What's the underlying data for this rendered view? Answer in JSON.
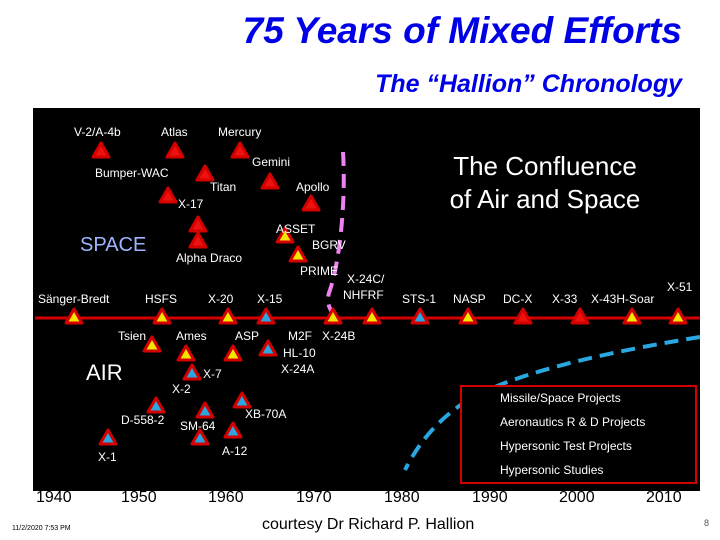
{
  "title": "75 Years of Mixed Efforts",
  "subtitle": "The “Hallion” Chronology",
  "labels": {
    "v2": "V-2/A-4b",
    "atlas": "Atlas",
    "mercury": "Mercury",
    "gemini": "Gemini",
    "bumper": "Bumper-WAC",
    "titan": "Titan",
    "apollo": "Apollo",
    "x17": "X-17",
    "asset": "ASSET",
    "bgrv": "BGRV",
    "alpha": "Alpha Draco",
    "prime": "PRIME",
    "sanger": "Sänger-Bredt",
    "hsfs": "HSFS",
    "x20": "X-20",
    "x15": "X-15",
    "x24c": "X-24C/",
    "nhfrf": "NHFRF",
    "sts1": "STS-1",
    "nasp": "NASP",
    "dcx": "DC-X",
    "x33": "X-33",
    "x43": "X-43H-Soar",
    "x51": "X-51",
    "tsien": "Tsien",
    "ames": "Ames",
    "asp": "ASP",
    "m2f": "M2F",
    "x24b": "X-24B",
    "hl10": "HL-10",
    "x24a": "X-24A",
    "x7": "X-7",
    "x2": "X-2",
    "d558": "D-558-2",
    "sm64": "SM-64",
    "xb70": "XB-70A",
    "x1": "X-1",
    "a12": "A-12"
  },
  "space_label": "SPACE",
  "air_label": "AIR",
  "confluence": [
    "The Confluence",
    "of Air and Space"
  ],
  "legend": [
    {
      "label": "Missile/Space Projects",
      "color": "#d40000"
    },
    {
      "label": "Aeronautics R & D Projects",
      "color": "#2aa6e0"
    },
    {
      "label": "Hypersonic Test Projects",
      "color": "#d40000"
    },
    {
      "label": "Hypersonic Studies",
      "color": "#f2e600"
    }
  ],
  "years": [
    "1940",
    "1950",
    "1960",
    "1970",
    "1980",
    "1990",
    "2000",
    "2010"
  ],
  "date": "11/2/2020 7:53 PM",
  "courtesy": "courtesy Dr Richard P. Hallion",
  "page_number": "8",
  "colors": {
    "title": "#0000e6",
    "space_line": "#ee82ee",
    "air_line": "#2aa6e0",
    "timeline": "#d40000"
  }
}
